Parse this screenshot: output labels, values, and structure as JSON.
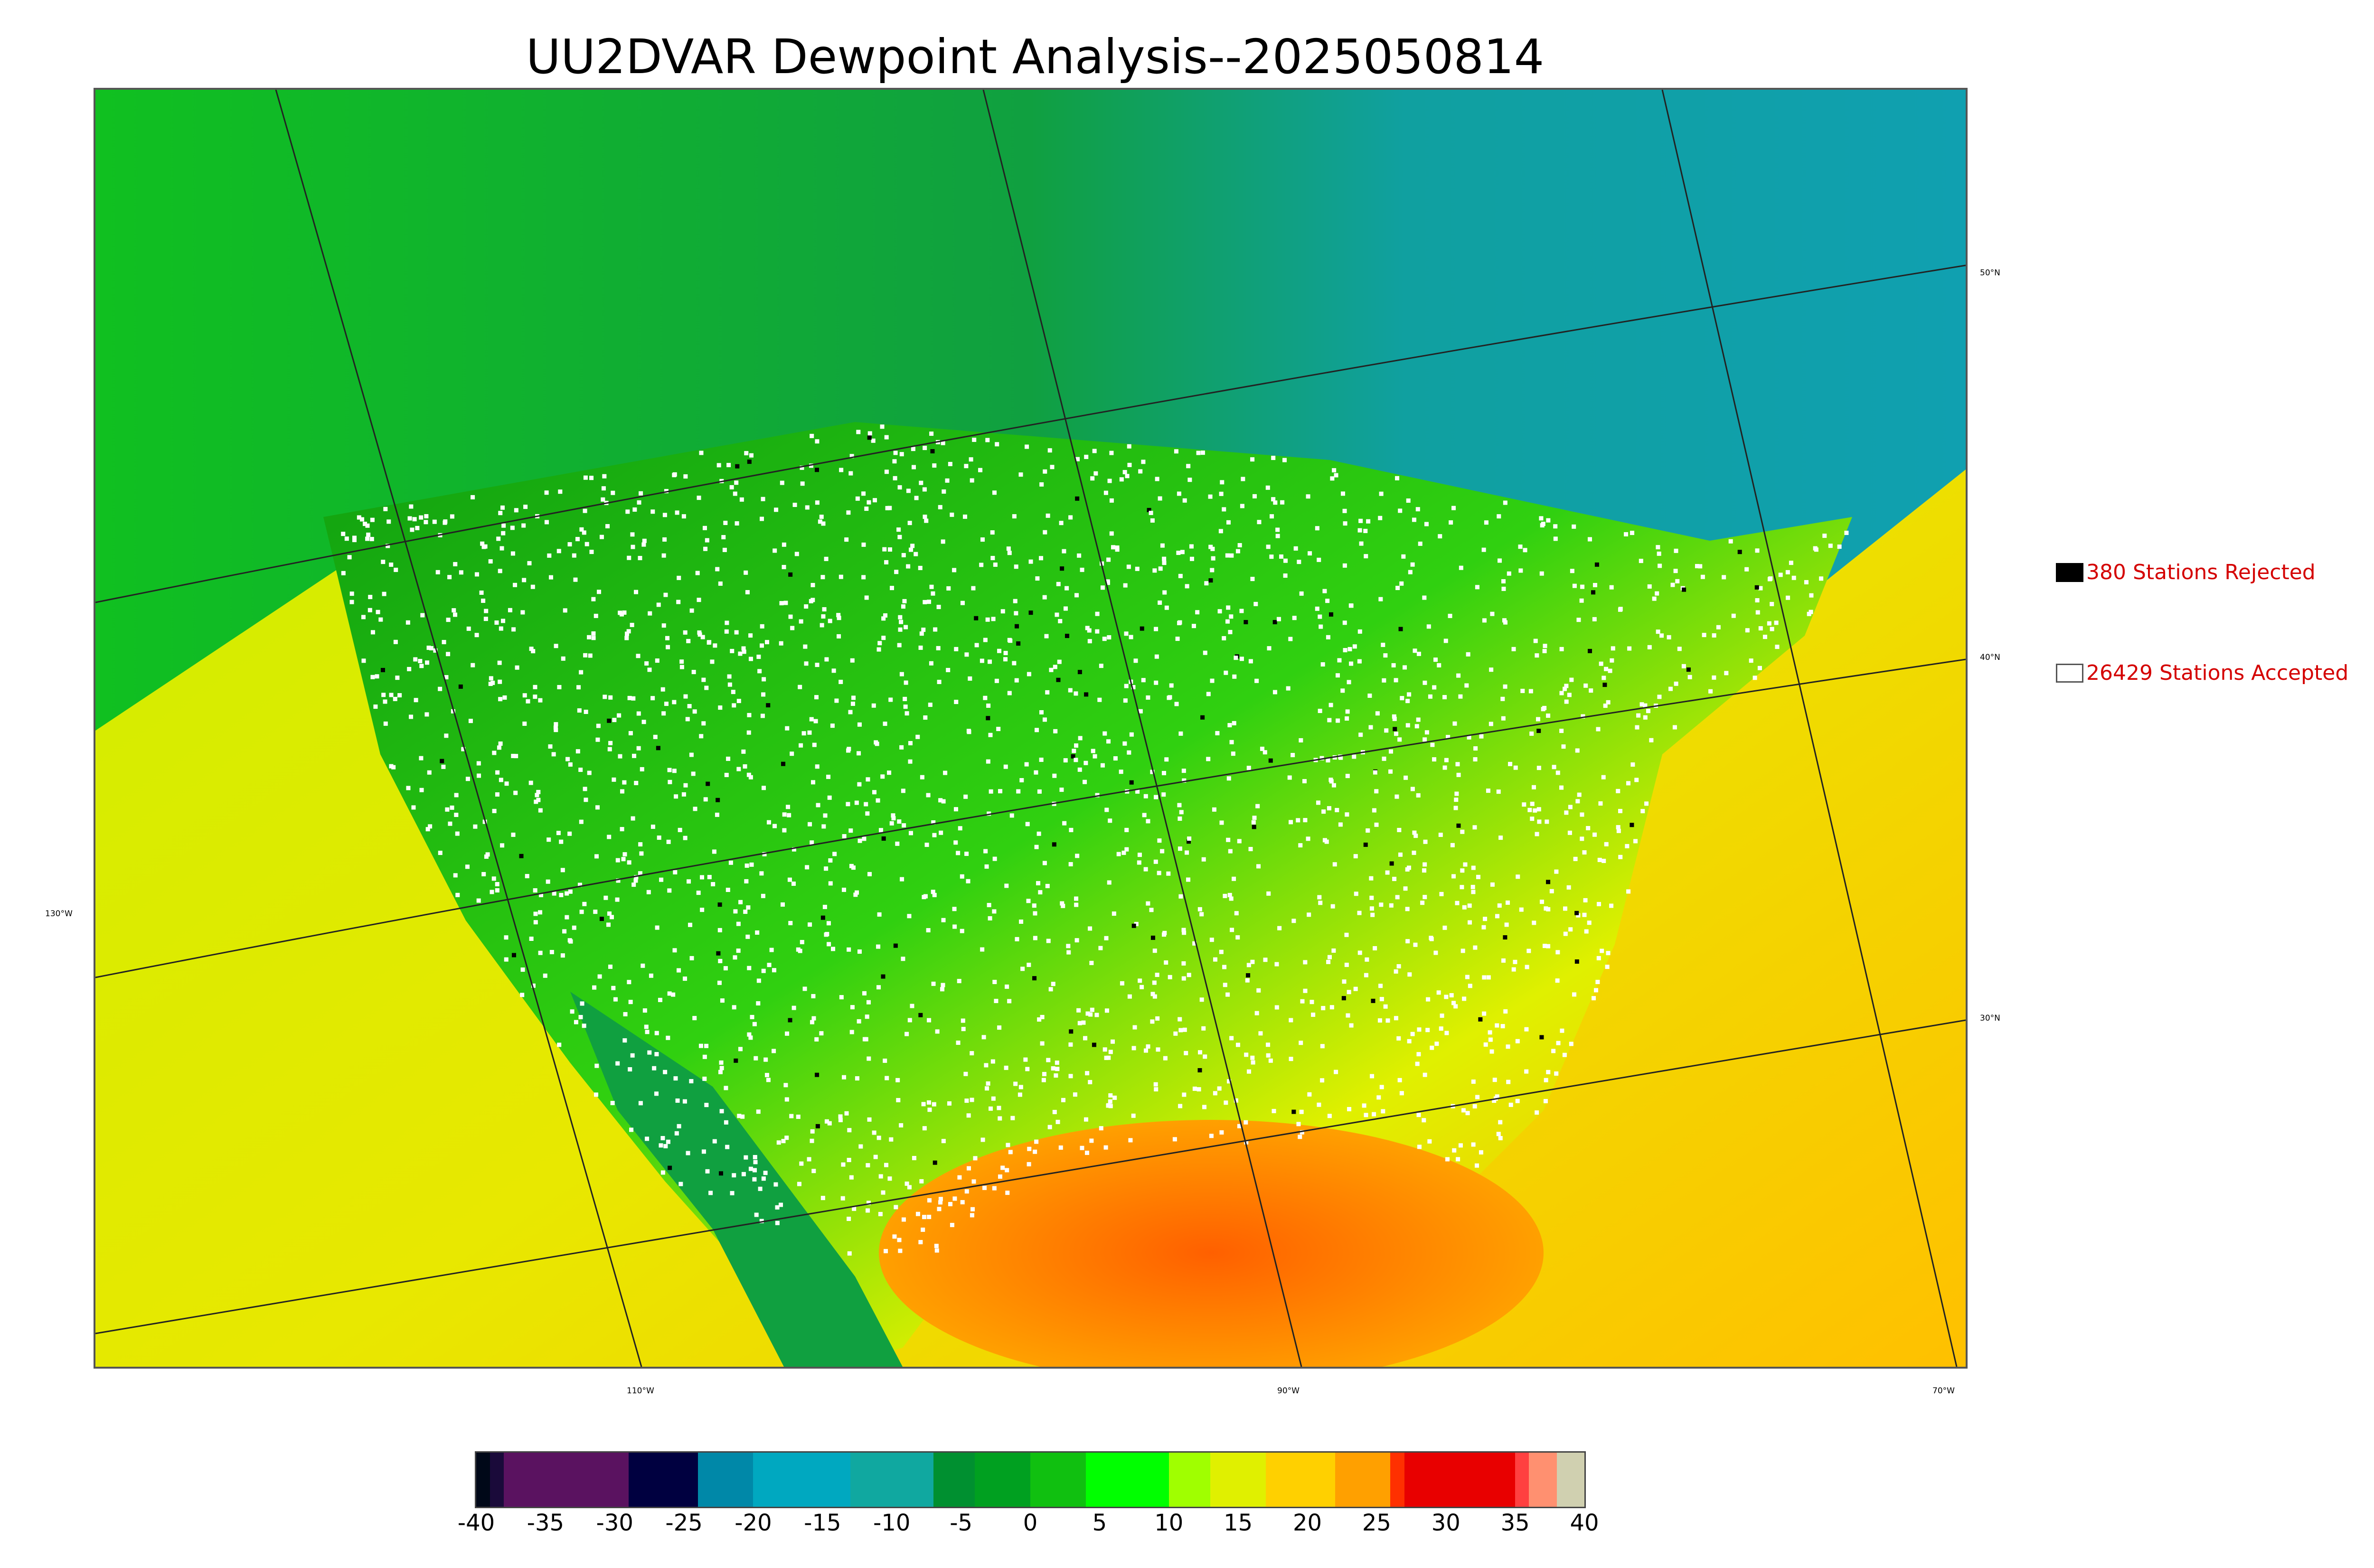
{
  "title": "UU2DVAR Dewpoint Analysis--2025050814",
  "map": {
    "lat_labels": [
      "50°N",
      "40°N",
      "30°N"
    ],
    "lon_labels": [
      "130°W",
      "110°W",
      "90°W",
      "70°W"
    ],
    "colors": {
      "pacific": "#c8f000",
      "pacific_south": "#e8e000",
      "atlantic": "#ffc800",
      "gulf": "#ff7000",
      "canada_cold": "#10a0a0",
      "land_dry": "#10b010",
      "land_moist": "#30e010",
      "land_humid": "#e8f000",
      "land_warm": "#ffb000",
      "station_accepted": "#ffffff",
      "station_rejected": "#000000"
    }
  },
  "legend": {
    "rejected_label": "380 Stations Rejected",
    "accepted_label": "26429 Stations Accepted"
  },
  "colorbar": {
    "ticks": [
      "-40",
      "-35",
      "-30",
      "-25",
      "-20",
      "-15",
      "-10",
      "-5",
      "0",
      "5",
      "10",
      "15",
      "20",
      "25",
      "30",
      "35",
      "40"
    ],
    "range": [
      -40,
      40
    ],
    "stops": [
      {
        "from": -40,
        "to": -39,
        "color": "#000818"
      },
      {
        "from": -39,
        "to": -38,
        "color": "#1a0a3a"
      },
      {
        "from": -38,
        "to": -29,
        "color": "#5a1260"
      },
      {
        "from": -29,
        "to": -24,
        "color": "#000040"
      },
      {
        "from": -24,
        "to": -20,
        "color": "#0088a8"
      },
      {
        "from": -20,
        "to": -13,
        "color": "#00a8c0"
      },
      {
        "from": -13,
        "to": -7,
        "color": "#10a8a0"
      },
      {
        "from": -7,
        "to": -4,
        "color": "#009030"
      },
      {
        "from": -4,
        "to": 0,
        "color": "#00a020"
      },
      {
        "from": 0,
        "to": 4,
        "color": "#10c010"
      },
      {
        "from": 4,
        "to": 10,
        "color": "#00ff00"
      },
      {
        "from": 10,
        "to": 13,
        "color": "#a0ff00"
      },
      {
        "from": 13,
        "to": 17,
        "color": "#e0f000"
      },
      {
        "from": 17,
        "to": 22,
        "color": "#ffd000"
      },
      {
        "from": 22,
        "to": 26,
        "color": "#ffa000"
      },
      {
        "from": 26,
        "to": 27,
        "color": "#ff3000"
      },
      {
        "from": 27,
        "to": 35,
        "color": "#e80000"
      },
      {
        "from": 35,
        "to": 36,
        "color": "#ff4040"
      },
      {
        "from": 36,
        "to": 38,
        "color": "#ff9070"
      },
      {
        "from": 38,
        "to": 40,
        "color": "#d0d0b0"
      }
    ]
  }
}
